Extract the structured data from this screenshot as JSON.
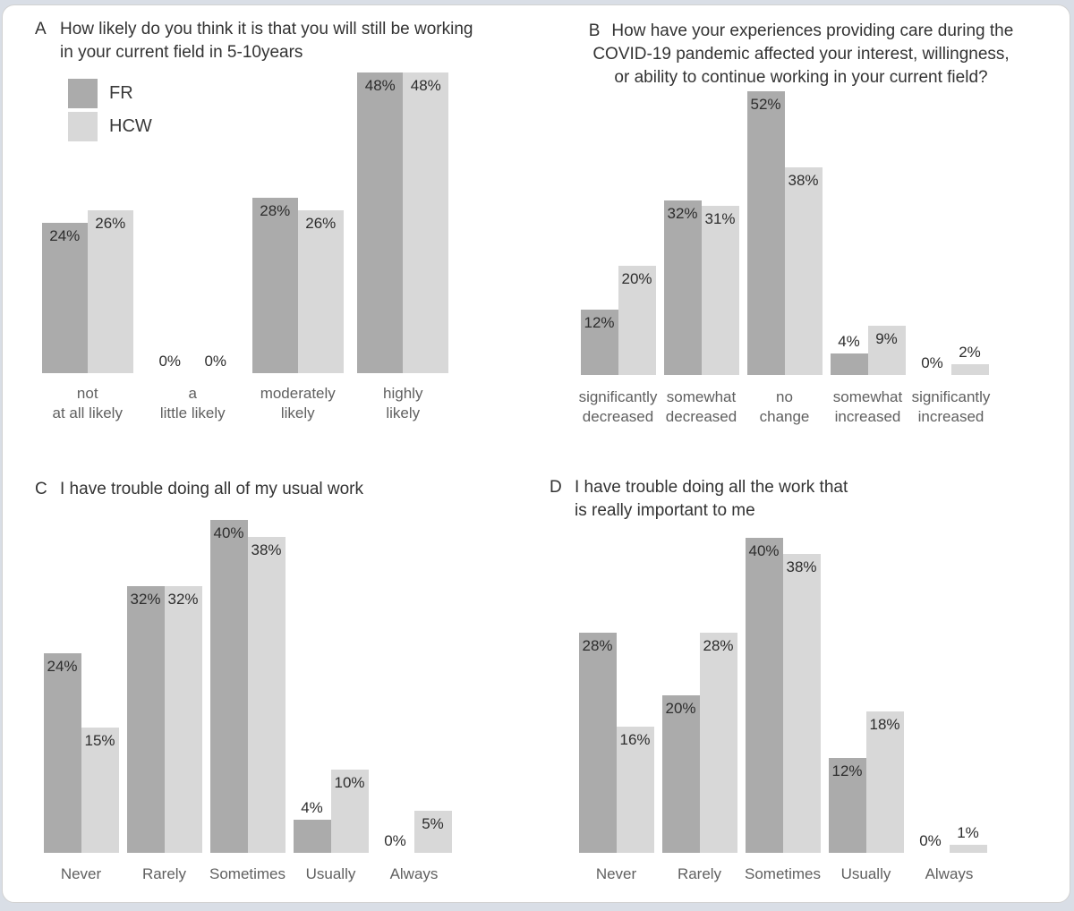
{
  "figure": {
    "colors": {
      "fr": "#ababab",
      "hcw": "#d8d8d8"
    },
    "legend": {
      "position": "top-left-panel-A",
      "items": [
        {
          "label": "FR",
          "color": "#ababab"
        },
        {
          "label": "HCW",
          "color": "#d8d8d8"
        }
      ]
    }
  },
  "chart_data": [
    {
      "type": "bar",
      "panel": "A",
      "title": "How likely do you think it is that you will still be working in your current field in 5-10years",
      "title_lines": [
        "How likely do you think it is that you will still be working",
        "in your current field in 5-10years"
      ],
      "categories": [
        [
          "not",
          "at all likely"
        ],
        [
          "a",
          "little likely"
        ],
        [
          "moderately",
          "likely"
        ],
        [
          "highly",
          "likely"
        ]
      ],
      "series": [
        {
          "name": "FR",
          "values": [
            24,
            0,
            28,
            48
          ]
        },
        {
          "name": "HCW",
          "values": [
            26,
            0,
            26,
            48
          ]
        }
      ],
      "value_suffix": "%",
      "xlabel": "",
      "ylabel": "",
      "ylim": [
        0,
        55
      ],
      "grid": false,
      "legend_position": "upper left"
    },
    {
      "type": "bar",
      "panel": "B",
      "title": "How have your experiences providing care during the COVID-19 pandemic affected your interest, willingness, or ability to continue working in your current field?",
      "title_lines": [
        "How have your experiences providing care during the",
        "COVID-19 pandemic affected your interest, willingness,",
        "or ability to continue working in your current field?"
      ],
      "categories": [
        [
          "significantly",
          "decreased"
        ],
        [
          "somewhat",
          "decreased"
        ],
        [
          "no",
          "change"
        ],
        [
          "somewhat",
          "increased"
        ],
        [
          "significantly",
          "increased"
        ]
      ],
      "series": [
        {
          "name": "FR",
          "values": [
            12,
            32,
            52,
            4,
            0
          ]
        },
        {
          "name": "HCW",
          "values": [
            20,
            31,
            38,
            9,
            2
          ]
        }
      ],
      "value_suffix": "%",
      "xlabel": "",
      "ylabel": "",
      "ylim": [
        0,
        60
      ],
      "grid": false,
      "legend_position": "none"
    },
    {
      "type": "bar",
      "panel": "C",
      "title": "I have trouble doing all of my usual work",
      "title_lines": [
        "I have trouble doing all of my usual work"
      ],
      "categories": [
        [
          "Never"
        ],
        [
          "Rarely"
        ],
        [
          "Sometimes"
        ],
        [
          "Usually"
        ],
        [
          "Always"
        ]
      ],
      "series": [
        {
          "name": "FR",
          "values": [
            24,
            32,
            40,
            4,
            0
          ]
        },
        {
          "name": "HCW",
          "values": [
            15,
            32,
            38,
            10,
            5
          ]
        }
      ],
      "value_suffix": "%",
      "xlabel": "",
      "ylabel": "",
      "ylim": [
        0,
        45
      ],
      "grid": false,
      "legend_position": "none"
    },
    {
      "type": "bar",
      "panel": "D",
      "title": "I have trouble doing all the work that is really important to me",
      "title_lines": [
        "I have trouble doing all the work that",
        "is really important to me"
      ],
      "categories": [
        [
          "Never"
        ],
        [
          "Rarely"
        ],
        [
          "Sometimes"
        ],
        [
          "Usually"
        ],
        [
          "Always"
        ]
      ],
      "series": [
        {
          "name": "FR",
          "values": [
            28,
            20,
            40,
            12,
            0
          ]
        },
        {
          "name": "HCW",
          "values": [
            16,
            28,
            38,
            18,
            1
          ]
        }
      ],
      "value_suffix": "%",
      "xlabel": "",
      "ylabel": "",
      "ylim": [
        0,
        45
      ],
      "grid": false,
      "legend_position": "none"
    }
  ]
}
